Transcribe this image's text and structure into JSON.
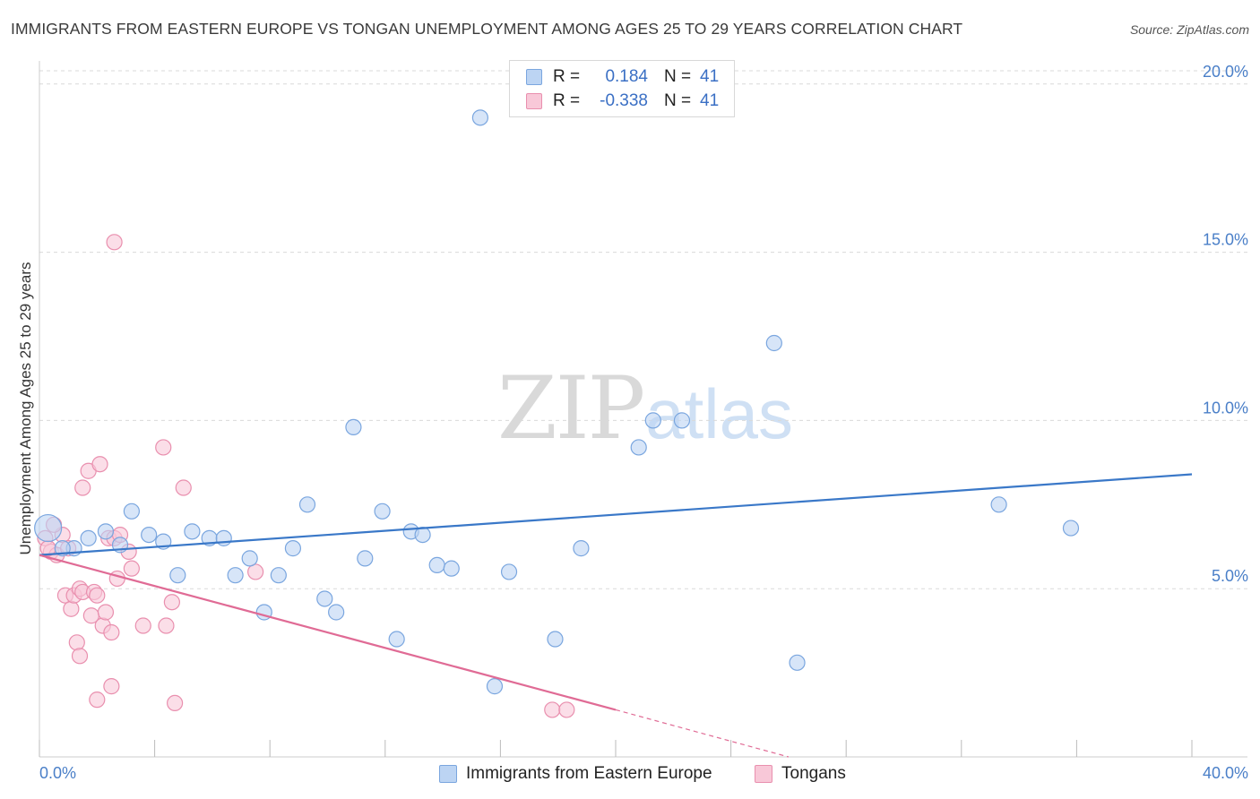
{
  "header": {
    "title": "IMMIGRANTS FROM EASTERN EUROPE VS TONGAN UNEMPLOYMENT AMONG AGES 25 TO 29 YEARS CORRELATION CHART",
    "source": "Source: ZipAtlas.com"
  },
  "watermark": {
    "zip": "ZIP",
    "atlas": "atlas"
  },
  "legend": {
    "series1": {
      "r_label": "R =",
      "r_value": "0.184",
      "n_label": "N =",
      "n_value": "41"
    },
    "series2": {
      "r_label": "R =",
      "r_value": "-0.338",
      "n_label": "N =",
      "n_value": "41"
    }
  },
  "colors": {
    "blue_fill": "#bcd4f3",
    "blue_stroke": "#7aa6df",
    "blue_line": "#3a78c8",
    "pink_fill": "#f8c8d8",
    "pink_stroke": "#e98fae",
    "pink_line": "#e06b95",
    "grid": "#d9d9d9",
    "axis": "#cccccc"
  },
  "chart_data": {
    "type": "scatter",
    "title": "IMMIGRANTS FROM EASTERN EUROPE VS TONGAN UNEMPLOYMENT AMONG AGES 25 TO 29 YEARS CORRELATION CHART",
    "xlabel": "",
    "ylabel": "Unemployment Among Ages 25 to 29 years",
    "xlim": [
      0,
      40
    ],
    "ylim": [
      0,
      20.5
    ],
    "x_tick_labels": [
      {
        "value": 0,
        "label": "0.0%"
      },
      {
        "value": 40,
        "label": "40.0%"
      }
    ],
    "y_tick_labels": [
      {
        "value": 5,
        "label": "5.0%"
      },
      {
        "value": 10,
        "label": "10.0%"
      },
      {
        "value": 15,
        "label": "15.0%"
      },
      {
        "value": 20,
        "label": "20.0%"
      }
    ],
    "x_minor_ticks": [
      0,
      4,
      8,
      12,
      16,
      20,
      24,
      28,
      32,
      36,
      40
    ],
    "series": [
      {
        "name": "Immigrants from Eastern Europe",
        "color": "blue",
        "points": [
          [
            0.3,
            6.8
          ],
          [
            1.2,
            6.2
          ],
          [
            1.7,
            6.5
          ],
          [
            2.3,
            6.7
          ],
          [
            2.8,
            6.3
          ],
          [
            3.2,
            7.3
          ],
          [
            3.8,
            6.6
          ],
          [
            4.3,
            6.4
          ],
          [
            4.8,
            5.4
          ],
          [
            5.3,
            6.7
          ],
          [
            5.9,
            6.5
          ],
          [
            6.4,
            6.5
          ],
          [
            6.8,
            5.4
          ],
          [
            7.3,
            5.9
          ],
          [
            7.8,
            4.3
          ],
          [
            8.3,
            5.4
          ],
          [
            8.8,
            6.2
          ],
          [
            9.3,
            7.5
          ],
          [
            9.9,
            4.7
          ],
          [
            10.3,
            4.3
          ],
          [
            10.9,
            9.8
          ],
          [
            11.3,
            5.9
          ],
          [
            11.9,
            7.3
          ],
          [
            12.4,
            3.5
          ],
          [
            12.9,
            6.7
          ],
          [
            13.3,
            6.6
          ],
          [
            13.8,
            5.7
          ],
          [
            14.3,
            5.6
          ],
          [
            15.3,
            19.0
          ],
          [
            15.8,
            2.1
          ],
          [
            16.3,
            5.5
          ],
          [
            17.9,
            3.5
          ],
          [
            18.8,
            6.2
          ],
          [
            20.8,
            9.2
          ],
          [
            21.3,
            10.0
          ],
          [
            22.3,
            10.0
          ],
          [
            25.5,
            12.3
          ],
          [
            26.3,
            2.8
          ],
          [
            33.3,
            7.5
          ],
          [
            35.8,
            6.8
          ],
          [
            0.8,
            6.2
          ]
        ],
        "trend": {
          "x0": 0,
          "y0": 6.0,
          "x1": 40,
          "y1": 8.4
        }
      },
      {
        "name": "Tongans",
        "color": "pink",
        "points": [
          [
            0.2,
            6.5
          ],
          [
            0.4,
            6.1
          ],
          [
            0.6,
            6.0
          ],
          [
            0.8,
            6.6
          ],
          [
            0.9,
            4.8
          ],
          [
            1.1,
            4.4
          ],
          [
            1.2,
            4.8
          ],
          [
            1.4,
            5.0
          ],
          [
            1.5,
            4.9
          ],
          [
            1.3,
            3.4
          ],
          [
            1.4,
            3.0
          ],
          [
            1.5,
            8.0
          ],
          [
            1.7,
            8.5
          ],
          [
            1.8,
            4.2
          ],
          [
            1.9,
            4.9
          ],
          [
            2.0,
            1.7
          ],
          [
            2.1,
            8.7
          ],
          [
            2.2,
            3.9
          ],
          [
            2.3,
            4.3
          ],
          [
            2.4,
            6.5
          ],
          [
            2.5,
            2.1
          ],
          [
            2.5,
            3.7
          ],
          [
            2.6,
            6.5
          ],
          [
            2.6,
            15.3
          ],
          [
            2.7,
            5.3
          ],
          [
            2.8,
            6.6
          ],
          [
            3.1,
            6.1
          ],
          [
            3.2,
            5.6
          ],
          [
            3.6,
            3.9
          ],
          [
            4.3,
            9.2
          ],
          [
            4.4,
            3.9
          ],
          [
            4.6,
            4.6
          ],
          [
            4.7,
            1.6
          ],
          [
            5.0,
            8.0
          ],
          [
            7.5,
            5.5
          ],
          [
            17.8,
            1.4
          ],
          [
            18.3,
            1.4
          ],
          [
            0.5,
            6.9
          ],
          [
            1.0,
            6.2
          ],
          [
            0.3,
            6.2
          ],
          [
            2.0,
            4.8
          ]
        ],
        "trend": {
          "x0": 0,
          "y0": 6.0,
          "x1": 20,
          "y1": 1.4
        },
        "trend_dashed": {
          "x0": 20,
          "y0": 1.4,
          "x1": 26,
          "y1": 0.0
        }
      }
    ]
  },
  "bottom_legend": {
    "series1_label": "Immigrants from Eastern Europe",
    "series2_label": "Tongans"
  }
}
